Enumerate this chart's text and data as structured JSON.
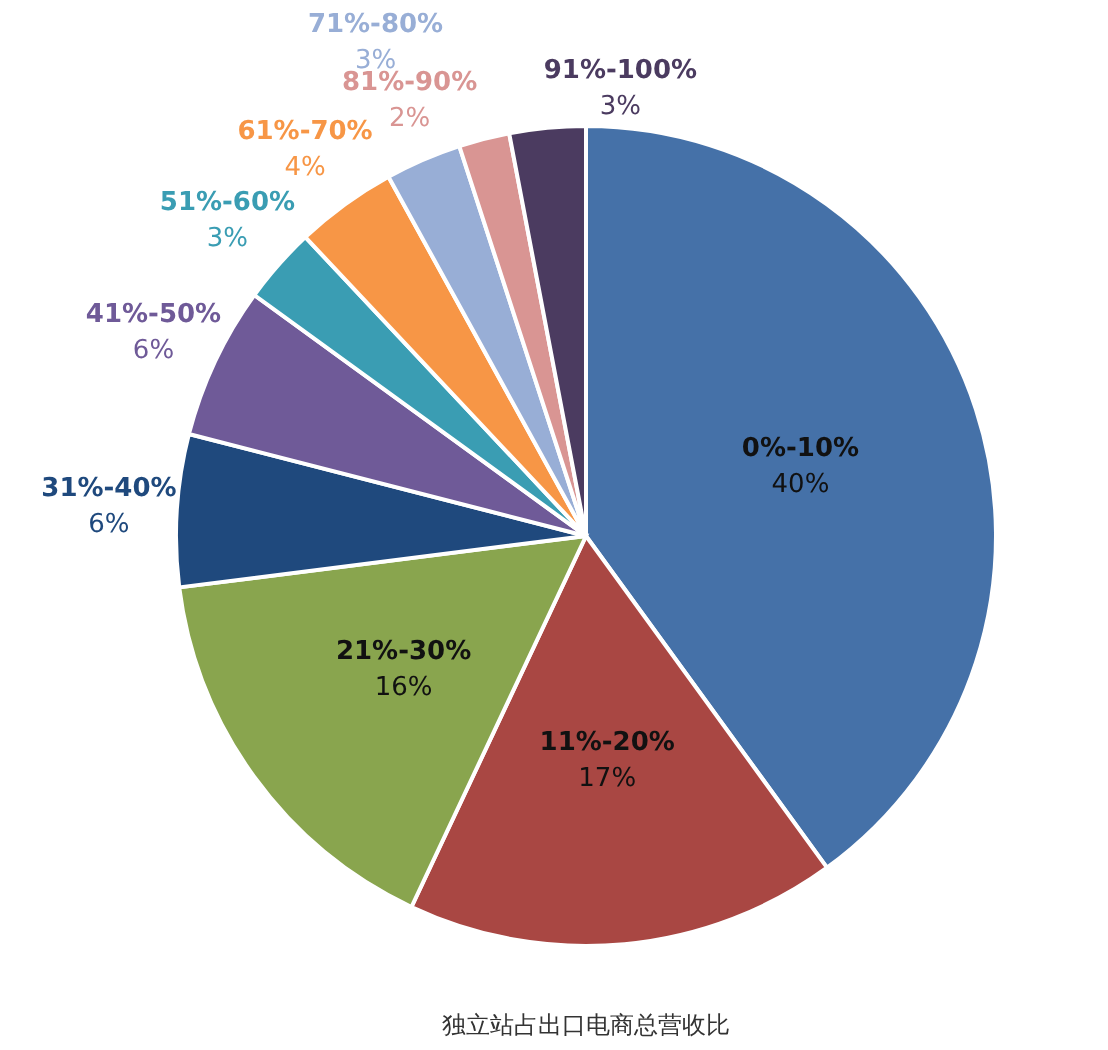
{
  "chart_data": {
    "type": "pie",
    "categories": [
      "0%-10%",
      "11%-20%",
      "21%-30%",
      "31%-40%",
      "41%-50%",
      "51%-60%",
      "61%-70%",
      "71%-80%",
      "81%-90%",
      "91%-100%"
    ],
    "values": [
      40,
      17,
      16,
      6,
      6,
      3,
      4,
      3,
      2,
      3
    ],
    "value_labels": [
      "40%",
      "17%",
      "16%",
      "6%",
      "6%",
      "3%",
      "4%",
      "3%",
      "2%",
      "3%"
    ],
    "colors": [
      "#4571a8",
      "#a94743",
      "#89a54e",
      "#1f497d",
      "#6f5a98",
      "#3a9db3",
      "#f79646",
      "#98aed6",
      "#d99593",
      "#4b3b60"
    ],
    "annotations": [
      "独立站占出口电商总营收比"
    ]
  }
}
